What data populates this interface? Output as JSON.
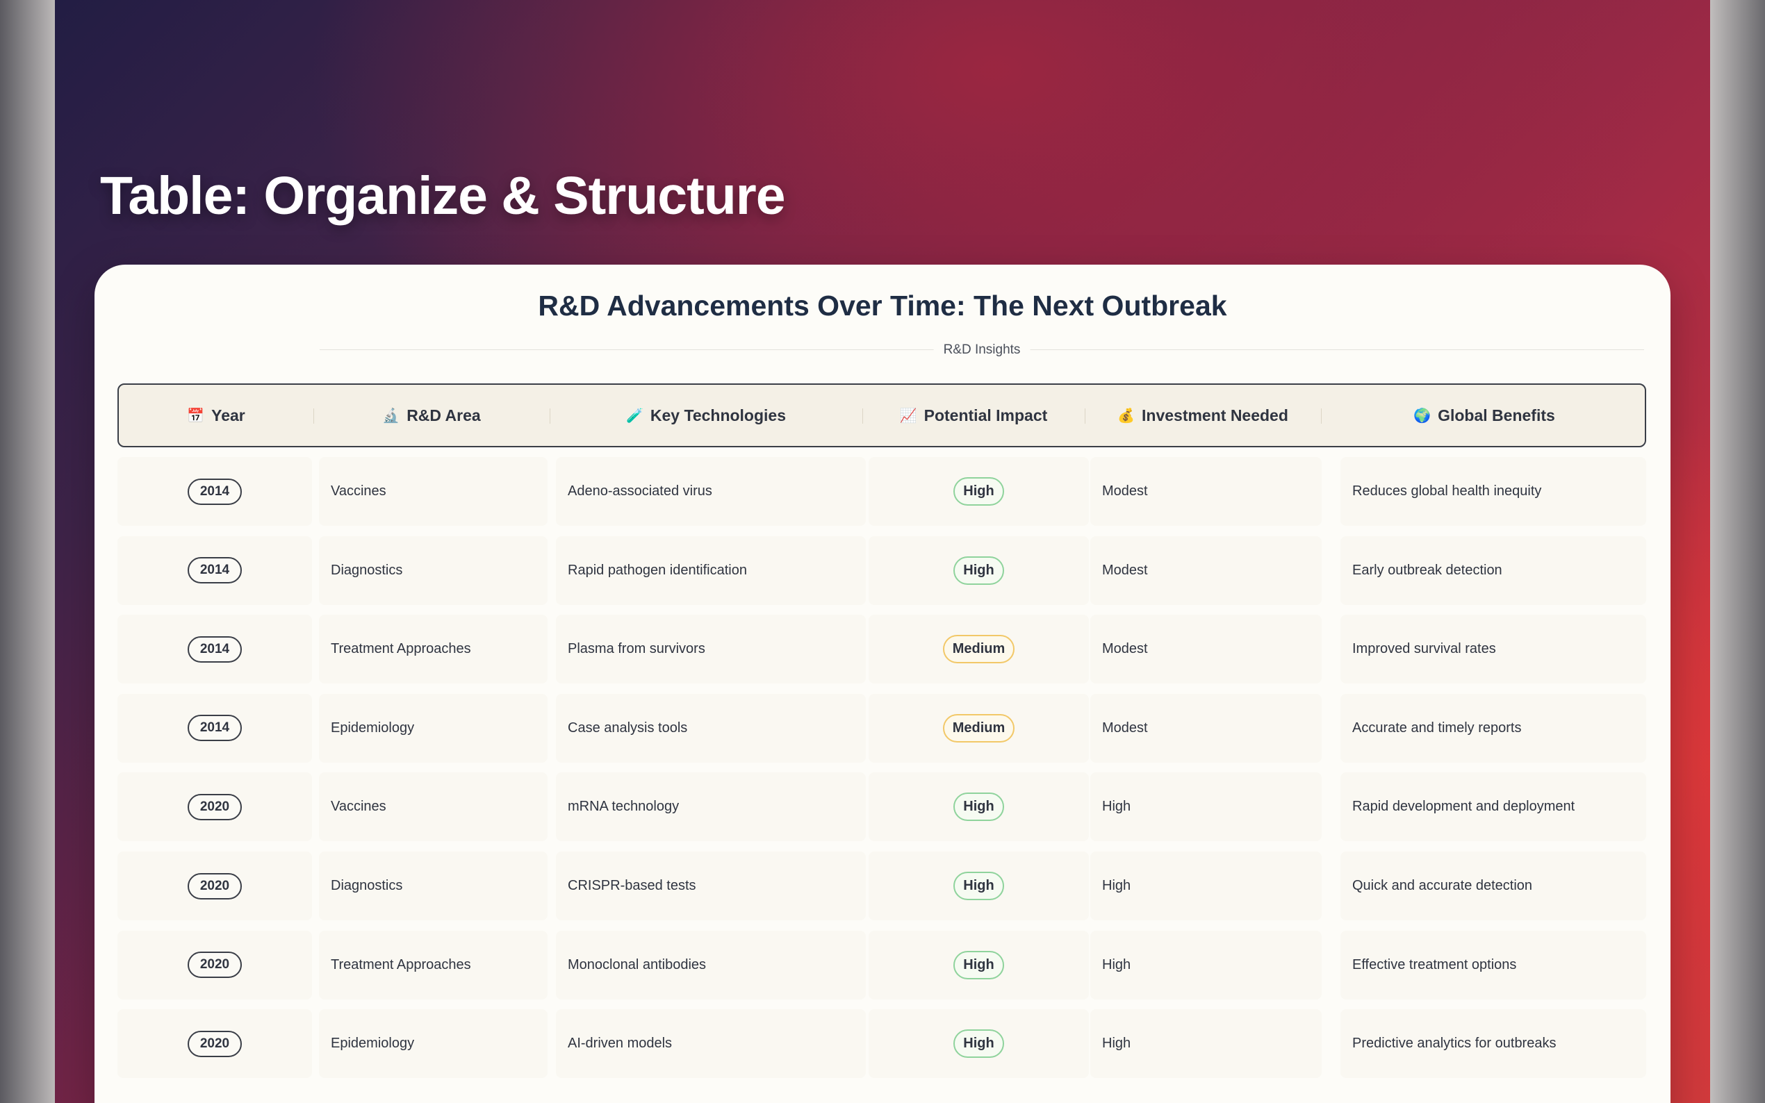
{
  "page_title": "Table: Organize & Structure",
  "card": {
    "title": "R&D Advancements Over Time: The Next Outbreak",
    "subtitle": "R&D Insights"
  },
  "columns": [
    {
      "icon": "📅",
      "icon_name": "calendar-icon",
      "label": "Year"
    },
    {
      "icon": "🔬",
      "icon_name": "microscope-icon",
      "label": "R&D Area"
    },
    {
      "icon": "🧪",
      "icon_name": "test-tube-icon",
      "label": "Key Technologies"
    },
    {
      "icon": "📈",
      "icon_name": "chart-increasing-icon",
      "label": "Potential Impact"
    },
    {
      "icon": "💰",
      "icon_name": "money-bag-icon",
      "label": "Investment Needed"
    },
    {
      "icon": "🌍",
      "icon_name": "globe-icon",
      "label": "Global Benefits"
    }
  ],
  "impact_colors": {
    "High": "#8fd39c",
    "Medium": "#f2c868"
  },
  "rows": [
    {
      "year": "2014",
      "area": "Vaccines",
      "tech": "Adeno-associated virus",
      "impact": "High",
      "investment": "Modest",
      "benefit": "Reduces global health inequity"
    },
    {
      "year": "2014",
      "area": "Diagnostics",
      "tech": "Rapid pathogen identification",
      "impact": "High",
      "investment": "Modest",
      "benefit": "Early outbreak detection"
    },
    {
      "year": "2014",
      "area": "Treatment Approaches",
      "tech": "Plasma from survivors",
      "impact": "Medium",
      "investment": "Modest",
      "benefit": "Improved survival rates"
    },
    {
      "year": "2014",
      "area": "Epidemiology",
      "tech": "Case analysis tools",
      "impact": "Medium",
      "investment": "Modest",
      "benefit": "Accurate and timely reports"
    },
    {
      "year": "2020",
      "area": "Vaccines",
      "tech": "mRNA technology",
      "impact": "High",
      "investment": "High",
      "benefit": "Rapid development and deployment"
    },
    {
      "year": "2020",
      "area": "Diagnostics",
      "tech": "CRISPR-based tests",
      "impact": "High",
      "investment": "High",
      "benefit": "Quick and accurate detection"
    },
    {
      "year": "2020",
      "area": "Treatment Approaches",
      "tech": "Monoclonal antibodies",
      "impact": "High",
      "investment": "High",
      "benefit": "Effective treatment options"
    },
    {
      "year": "2020",
      "area": "Epidemiology",
      "tech": "AI-driven models",
      "impact": "High",
      "investment": "High",
      "benefit": "Predictive analytics for outbreaks"
    }
  ]
}
